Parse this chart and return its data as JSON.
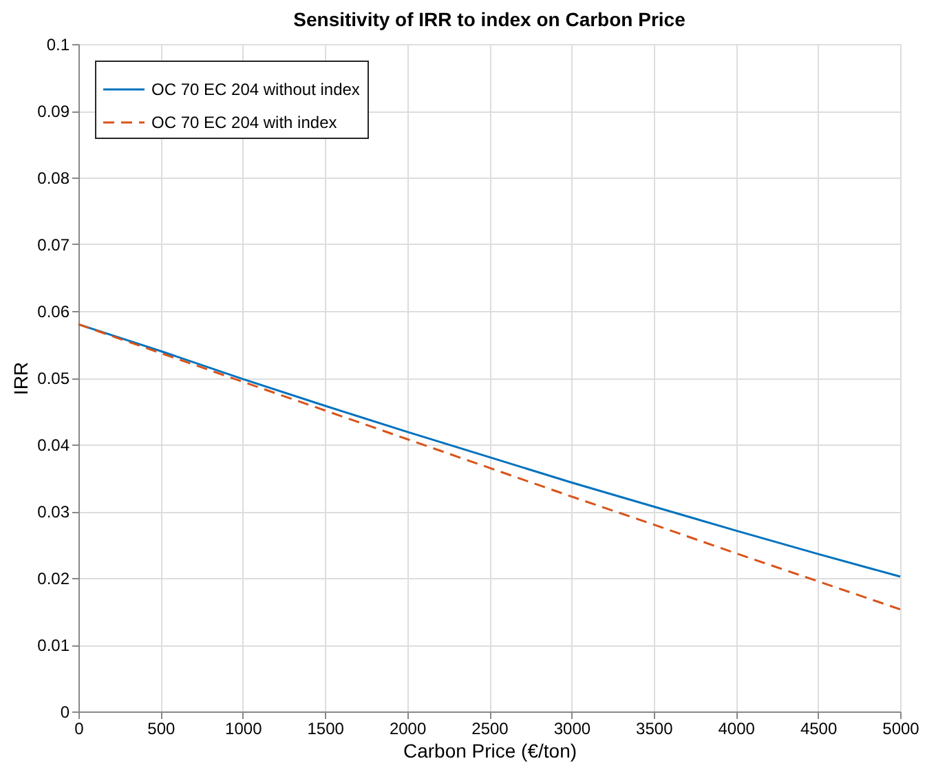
{
  "chart_data": {
    "type": "line",
    "title": "Sensitivity of IRR to index on Carbon Price",
    "xlabel": "Carbon Price (€/ton)",
    "ylabel": "IRR",
    "x": [
      0,
      500,
      1000,
      1500,
      2000,
      2500,
      3000,
      3500,
      4000,
      4500,
      5000
    ],
    "series": [
      {
        "name": "OC 70 EC 204 without index",
        "color": "#0072bd",
        "line_style": "solid",
        "values": [
          0.058,
          0.054,
          0.0498,
          0.0458,
          0.0419,
          0.0381,
          0.0343,
          0.0307,
          0.0271,
          0.0236,
          0.0202
        ]
      },
      {
        "name": "OC 70 EC 204 with index",
        "color": "#d95319",
        "line_style": "dashed",
        "values": [
          0.058,
          0.0537,
          0.0494,
          0.0451,
          0.0408,
          0.0365,
          0.0322,
          0.028,
          0.0237,
          0.0195,
          0.0153
        ]
      }
    ],
    "xlim": [
      0,
      5000
    ],
    "xticks": [
      0,
      500,
      1000,
      1500,
      2000,
      2500,
      3000,
      3500,
      4000,
      4500,
      5000
    ],
    "ylim": [
      0,
      0.1
    ],
    "yticks": [
      0,
      0.01,
      0.02,
      0.03,
      0.04,
      0.05,
      0.06,
      0.07,
      0.08,
      0.09,
      0.1
    ],
    "grid": true,
    "legend": "top left",
    "marker": "none"
  }
}
